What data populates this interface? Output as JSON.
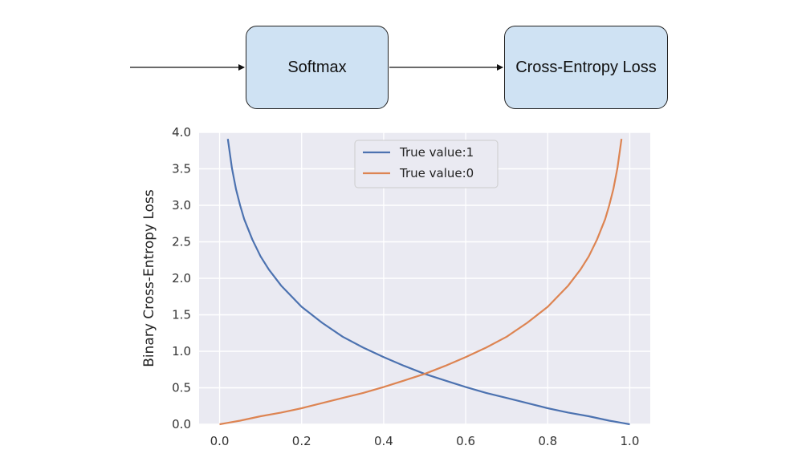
{
  "diagram": {
    "nodes": [
      {
        "id": "softmax",
        "label": "Softmax"
      },
      {
        "id": "cross_entropy",
        "label": "Cross-Entropy Loss"
      }
    ],
    "edges": [
      {
        "from": "input",
        "to": "softmax"
      },
      {
        "from": "softmax",
        "to": "cross_entropy"
      }
    ]
  },
  "chart_data": {
    "type": "line",
    "title": "",
    "xlabel": "",
    "ylabel": "Binary Cross-Entropy Loss",
    "xlim": [
      -0.05,
      1.05
    ],
    "ylim": [
      0,
      4.0
    ],
    "x_ticks": [
      "0.0",
      "0.2",
      "0.4",
      "0.6",
      "0.8",
      "1.0"
    ],
    "y_ticks": [
      "0.0",
      "0.5",
      "1.0",
      "1.5",
      "2.0",
      "2.5",
      "3.0",
      "3.5",
      "4.0"
    ],
    "grid": true,
    "legend_position": "top-center",
    "series": [
      {
        "name": "True value:1",
        "color": "#4c72b0",
        "x": [
          0.02,
          0.03,
          0.04,
          0.05,
          0.06,
          0.08,
          0.1,
          0.12,
          0.15,
          0.2,
          0.25,
          0.3,
          0.35,
          0.4,
          0.45,
          0.5,
          0.55,
          0.6,
          0.65,
          0.7,
          0.75,
          0.8,
          0.85,
          0.9,
          0.95,
          0.98,
          1.0
        ],
        "y": [
          3.91,
          3.51,
          3.22,
          3.0,
          2.81,
          2.53,
          2.3,
          2.12,
          1.9,
          1.61,
          1.39,
          1.2,
          1.05,
          0.92,
          0.8,
          0.69,
          0.6,
          0.51,
          0.43,
          0.36,
          0.29,
          0.22,
          0.16,
          0.11,
          0.05,
          0.02,
          0.0
        ]
      },
      {
        "name": "True value:0",
        "color": "#dd8452",
        "x": [
          0.0,
          0.02,
          0.05,
          0.1,
          0.15,
          0.2,
          0.25,
          0.3,
          0.35,
          0.4,
          0.45,
          0.5,
          0.55,
          0.6,
          0.65,
          0.7,
          0.75,
          0.8,
          0.85,
          0.88,
          0.9,
          0.92,
          0.94,
          0.95,
          0.96,
          0.97,
          0.98
        ],
        "y": [
          0.0,
          0.02,
          0.05,
          0.11,
          0.16,
          0.22,
          0.29,
          0.36,
          0.43,
          0.51,
          0.6,
          0.69,
          0.8,
          0.92,
          1.05,
          1.2,
          1.39,
          1.61,
          1.9,
          2.12,
          2.3,
          2.53,
          2.81,
          3.0,
          3.22,
          3.51,
          3.91
        ]
      }
    ]
  }
}
